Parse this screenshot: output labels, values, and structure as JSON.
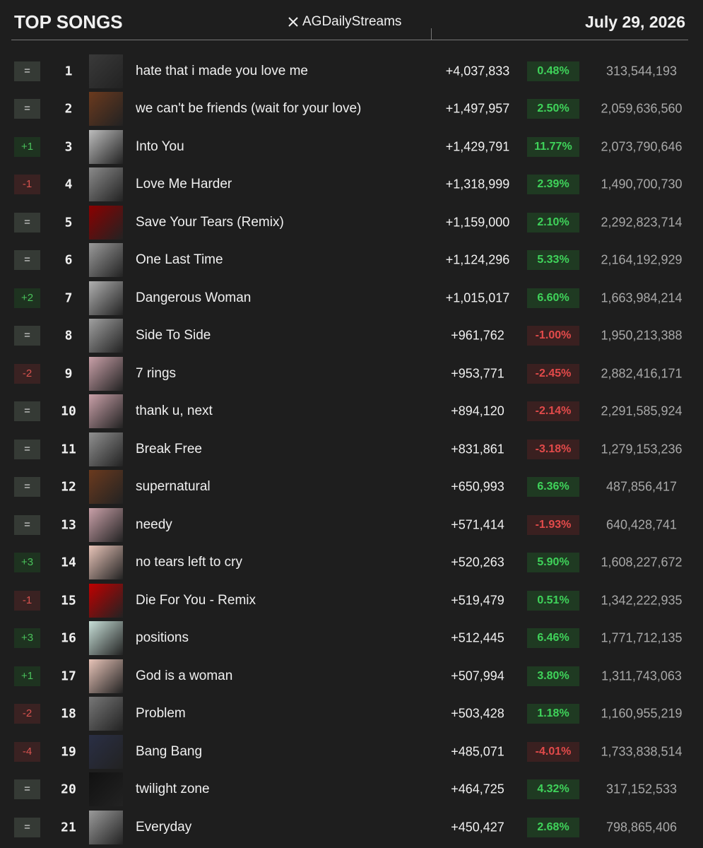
{
  "header": {
    "title": "TOP SONGS",
    "handle": "AGDailyStreams",
    "date": "July 29, 2026"
  },
  "table": {
    "rows": [
      {
        "change": "=",
        "rank": "1",
        "song": "hate that i made you love me",
        "daily": "+4,037,833",
        "percent": "0.48%",
        "total": "313,544,193"
      },
      {
        "change": "=",
        "rank": "2",
        "song": "we can't be friends (wait for your love)",
        "daily": "+1,497,957",
        "percent": "2.50%",
        "total": "2,059,636,560"
      },
      {
        "change": "+1",
        "rank": "3",
        "song": "Into You",
        "daily": "+1,429,791",
        "percent": "11.77%",
        "total": "2,073,790,646"
      },
      {
        "change": "-1",
        "rank": "4",
        "song": "Love Me Harder",
        "daily": "+1,318,999",
        "percent": "2.39%",
        "total": "1,490,700,730"
      },
      {
        "change": "=",
        "rank": "5",
        "song": "Save Your Tears (Remix)",
        "daily": "+1,159,000",
        "percent": "2.10%",
        "total": "2,292,823,714"
      },
      {
        "change": "=",
        "rank": "6",
        "song": "One Last Time",
        "daily": "+1,124,296",
        "percent": "5.33%",
        "total": "2,164,192,929"
      },
      {
        "change": "+2",
        "rank": "7",
        "song": "Dangerous Woman",
        "daily": "+1,015,017",
        "percent": "6.60%",
        "total": "1,663,984,214"
      },
      {
        "change": "=",
        "rank": "8",
        "song": "Side To Side",
        "daily": "+961,762",
        "percent": "-1.00%",
        "total": "1,950,213,388"
      },
      {
        "change": "-2",
        "rank": "9",
        "song": "7 rings",
        "daily": "+953,771",
        "percent": "-2.45%",
        "total": "2,882,416,171"
      },
      {
        "change": "=",
        "rank": "10",
        "song": "thank u, next",
        "daily": "+894,120",
        "percent": "-2.14%",
        "total": "2,291,585,924"
      },
      {
        "change": "=",
        "rank": "11",
        "song": "Break Free",
        "daily": "+831,861",
        "percent": "-3.18%",
        "total": "1,279,153,236"
      },
      {
        "change": "=",
        "rank": "12",
        "song": "supernatural",
        "daily": "+650,993",
        "percent": "6.36%",
        "total": "487,856,417"
      },
      {
        "change": "=",
        "rank": "13",
        "song": "needy",
        "daily": "+571,414",
        "percent": "-1.93%",
        "total": "640,428,741"
      },
      {
        "change": "+3",
        "rank": "14",
        "song": "no tears left to cry",
        "daily": "+520,263",
        "percent": "5.90%",
        "total": "1,608,227,672"
      },
      {
        "change": "-1",
        "rank": "15",
        "song": "Die For You - Remix",
        "daily": "+519,479",
        "percent": "0.51%",
        "total": "1,342,222,935"
      },
      {
        "change": "+3",
        "rank": "16",
        "song": "positions",
        "daily": "+512,445",
        "percent": "6.46%",
        "total": "1,771,712,135"
      },
      {
        "change": "+1",
        "rank": "17",
        "song": "God is a woman",
        "daily": "+507,994",
        "percent": "3.80%",
        "total": "1,311,743,063"
      },
      {
        "change": "-2",
        "rank": "18",
        "song": "Problem",
        "daily": "+503,428",
        "percent": "1.18%",
        "total": "1,160,955,219"
      },
      {
        "change": "-4",
        "rank": "19",
        "song": "Bang Bang",
        "daily": "+485,071",
        "percent": "-4.01%",
        "total": "1,733,838,514"
      },
      {
        "change": "=",
        "rank": "20",
        "song": "twilight zone",
        "daily": "+464,725",
        "percent": "4.32%",
        "total": "317,152,533"
      },
      {
        "change": "=",
        "rank": "21",
        "song": "Everyday",
        "daily": "+450,427",
        "percent": "2.68%",
        "total": "798,865,406"
      }
    ]
  }
}
